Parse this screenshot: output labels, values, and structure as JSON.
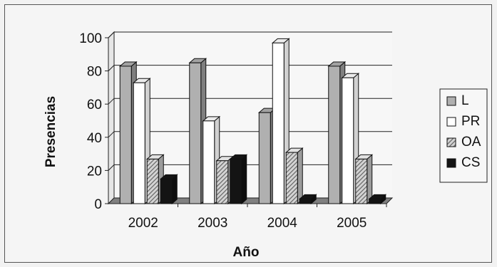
{
  "chart_data": {
    "type": "bar",
    "title": "",
    "xlabel": "Año",
    "ylabel": "Presencias",
    "ylim": [
      0,
      100
    ],
    "yticks": [
      0,
      20,
      40,
      60,
      80,
      100
    ],
    "grid": true,
    "legend_position": "right",
    "categories": [
      "2002",
      "2003",
      "2004",
      "2005"
    ],
    "series": [
      {
        "name": "L",
        "values": [
          82,
          84,
          54,
          82
        ],
        "color": "#b0b0b0",
        "pattern": "solid"
      },
      {
        "name": "PR",
        "values": [
          72,
          49,
          96,
          75
        ],
        "color": "#ffffff",
        "pattern": "solid"
      },
      {
        "name": "OA",
        "values": [
          26,
          25,
          30,
          26
        ],
        "color": "#cfcfcf",
        "pattern": "hatch"
      },
      {
        "name": "CS",
        "values": [
          14,
          26,
          2,
          2
        ],
        "color": "#141414",
        "pattern": "solid"
      }
    ]
  }
}
